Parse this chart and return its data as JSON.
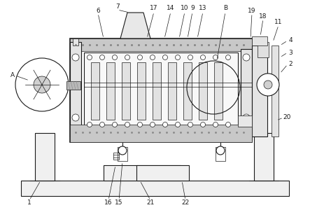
{
  "bg_color": "#ffffff",
  "lc": "#1a1a1a",
  "gray_fill": "#d4d4d4",
  "light_gray": "#ebebeb",
  "white": "#ffffff",
  "dark_gray": "#aaaaaa"
}
